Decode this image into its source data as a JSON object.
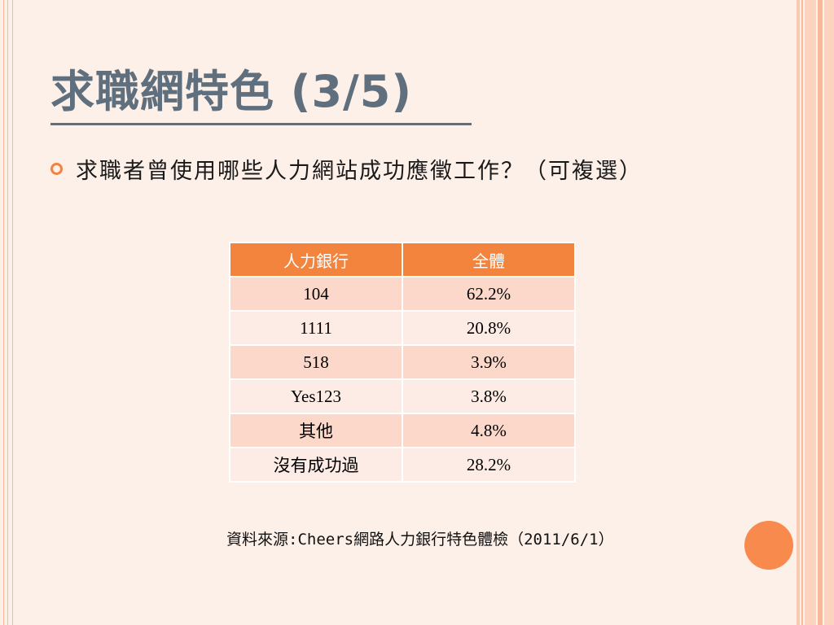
{
  "title": "求職網特色 (3/5)",
  "bullet": "求職者曾使用哪些人力網站成功應徵工作？（可複選）",
  "table": {
    "headers": [
      "人力銀行",
      "全體"
    ],
    "rows": [
      [
        "104",
        "62.2%"
      ],
      [
        "1111",
        "20.8%"
      ],
      [
        "518",
        "3.9%"
      ],
      [
        "Yes123",
        "3.8%"
      ],
      [
        "其他",
        "4.8%"
      ],
      [
        "沒有成功過",
        "28.2%"
      ]
    ]
  },
  "source": "資料來源:Cheers網路人力銀行特色體檢（2011/6/1）",
  "colors": {
    "accent": "#f2843e",
    "title": "#5f6f7e",
    "row_odd": "#fbd8c9",
    "row_even": "#fdebe5"
  }
}
